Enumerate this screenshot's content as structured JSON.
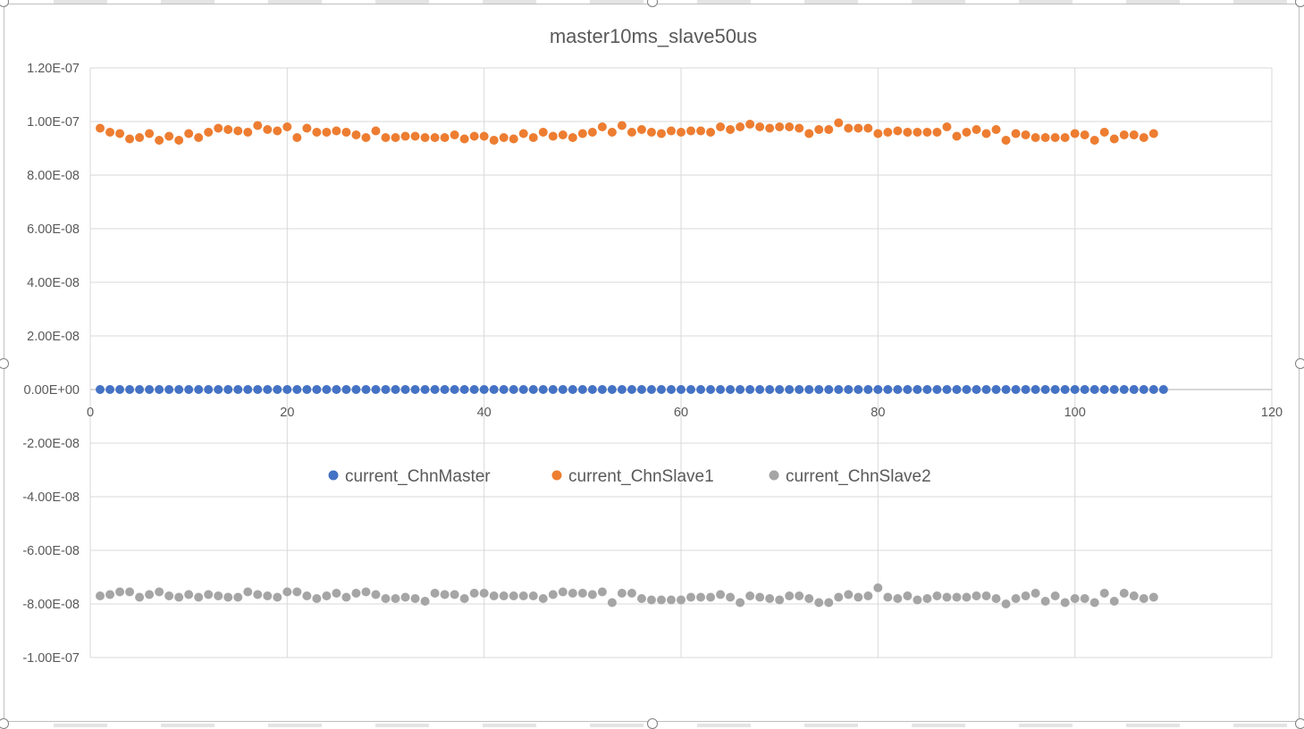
{
  "chart_data": {
    "type": "scatter",
    "title": "master10ms_slave50us",
    "xlabel": "",
    "ylabel": "",
    "xlim": [
      0,
      120
    ],
    "ylim": [
      -1e-07,
      1.2e-07
    ],
    "x_ticks": [
      0,
      20,
      40,
      60,
      80,
      100,
      120
    ],
    "y_ticks": [
      {
        "value": 1.2e-07,
        "label": "1.20E-07"
      },
      {
        "value": 1e-07,
        "label": "1.00E-07"
      },
      {
        "value": 8e-08,
        "label": "8.00E-08"
      },
      {
        "value": 6e-08,
        "label": "6.00E-08"
      },
      {
        "value": 4e-08,
        "label": "4.00E-08"
      },
      {
        "value": 2e-08,
        "label": "2.00E-08"
      },
      {
        "value": 0,
        "label": "0.00E+00"
      },
      {
        "value": -2e-08,
        "label": "-2.00E-08"
      },
      {
        "value": -4e-08,
        "label": "-4.00E-08"
      },
      {
        "value": -6e-08,
        "label": "-6.00E-08"
      },
      {
        "value": -8e-08,
        "label": "-8.00E-08"
      },
      {
        "value": -1e-07,
        "label": "-1.00E-07"
      }
    ],
    "grid": true,
    "legend_position": "center",
    "series": [
      {
        "name": "current_ChnMaster",
        "color": "#4472c4",
        "x_start": 1,
        "values": [
          0,
          0,
          0,
          0,
          0,
          0,
          0,
          0,
          0,
          0,
          0,
          0,
          0,
          0,
          0,
          0,
          0,
          0,
          0,
          0,
          0,
          0,
          0,
          0,
          0,
          0,
          0,
          0,
          0,
          0,
          0,
          0,
          0,
          0,
          0,
          0,
          0,
          0,
          0,
          0,
          0,
          0,
          0,
          0,
          0,
          0,
          0,
          0,
          0,
          0,
          0,
          0,
          0,
          0,
          0,
          0,
          0,
          0,
          0,
          0,
          0,
          0,
          0,
          0,
          0,
          0,
          0,
          0,
          0,
          0,
          0,
          0,
          0,
          0,
          0,
          0,
          0,
          0,
          0,
          0,
          0,
          0,
          0,
          0,
          0,
          0,
          0,
          0,
          0,
          0,
          0,
          0,
          0,
          0,
          0,
          0,
          0,
          0,
          0,
          0,
          0,
          0,
          0,
          0,
          0,
          0,
          0,
          0,
          0
        ]
      },
      {
        "name": "current_ChnSlave1",
        "color": "#ed7d31",
        "x_start": 1,
        "values": [
          9.75e-08,
          9.6e-08,
          9.55e-08,
          9.35e-08,
          9.4e-08,
          9.55e-08,
          9.3e-08,
          9.45e-08,
          9.3e-08,
          9.55e-08,
          9.4e-08,
          9.6e-08,
          9.75e-08,
          9.7e-08,
          9.65e-08,
          9.6e-08,
          9.85e-08,
          9.7e-08,
          9.65e-08,
          9.8e-08,
          9.4e-08,
          9.75e-08,
          9.6e-08,
          9.6e-08,
          9.65e-08,
          9.6e-08,
          9.5e-08,
          9.4e-08,
          9.65e-08,
          9.4e-08,
          9.4e-08,
          9.45e-08,
          9.45e-08,
          9.4e-08,
          9.4e-08,
          9.4e-08,
          9.5e-08,
          9.35e-08,
          9.45e-08,
          9.45e-08,
          9.3e-08,
          9.4e-08,
          9.35e-08,
          9.55e-08,
          9.4e-08,
          9.6e-08,
          9.45e-08,
          9.5e-08,
          9.4e-08,
          9.55e-08,
          9.6e-08,
          9.8e-08,
          9.6e-08,
          9.85e-08,
          9.6e-08,
          9.7e-08,
          9.6e-08,
          9.55e-08,
          9.65e-08,
          9.6e-08,
          9.65e-08,
          9.65e-08,
          9.6e-08,
          9.8e-08,
          9.7e-08,
          9.8e-08,
          9.9e-08,
          9.8e-08,
          9.75e-08,
          9.8e-08,
          9.8e-08,
          9.75e-08,
          9.55e-08,
          9.7e-08,
          9.7e-08,
          9.95e-08,
          9.75e-08,
          9.75e-08,
          9.75e-08,
          9.55e-08,
          9.6e-08,
          9.65e-08,
          9.6e-08,
          9.6e-08,
          9.6e-08,
          9.6e-08,
          9.8e-08,
          9.45e-08,
          9.6e-08,
          9.7e-08,
          9.55e-08,
          9.7e-08,
          9.3e-08,
          9.55e-08,
          9.5e-08,
          9.4e-08,
          9.4e-08,
          9.4e-08,
          9.4e-08,
          9.55e-08,
          9.5e-08,
          9.3e-08,
          9.6e-08,
          9.35e-08,
          9.5e-08,
          9.5e-08,
          9.4e-08,
          9.55e-08
        ]
      },
      {
        "name": "current_ChnSlave2",
        "color": "#a5a5a5",
        "x_start": 1,
        "values": [
          -7.7e-08,
          -7.65e-08,
          -7.55e-08,
          -7.55e-08,
          -7.75e-08,
          -7.65e-08,
          -7.55e-08,
          -7.7e-08,
          -7.75e-08,
          -7.65e-08,
          -7.75e-08,
          -7.65e-08,
          -7.7e-08,
          -7.75e-08,
          -7.75e-08,
          -7.55e-08,
          -7.65e-08,
          -7.7e-08,
          -7.75e-08,
          -7.55e-08,
          -7.55e-08,
          -7.7e-08,
          -7.8e-08,
          -7.7e-08,
          -7.6e-08,
          -7.75e-08,
          -7.6e-08,
          -7.55e-08,
          -7.65e-08,
          -7.8e-08,
          -7.8e-08,
          -7.75e-08,
          -7.8e-08,
          -7.9e-08,
          -7.6e-08,
          -7.65e-08,
          -7.65e-08,
          -7.8e-08,
          -7.6e-08,
          -7.6e-08,
          -7.7e-08,
          -7.7e-08,
          -7.7e-08,
          -7.7e-08,
          -7.7e-08,
          -7.8e-08,
          -7.65e-08,
          -7.55e-08,
          -7.6e-08,
          -7.6e-08,
          -7.65e-08,
          -7.55e-08,
          -7.95e-08,
          -7.6e-08,
          -7.6e-08,
          -7.8e-08,
          -7.85e-08,
          -7.85e-08,
          -7.85e-08,
          -7.85e-08,
          -7.75e-08,
          -7.75e-08,
          -7.75e-08,
          -7.65e-08,
          -7.75e-08,
          -7.95e-08,
          -7.7e-08,
          -7.75e-08,
          -7.8e-08,
          -7.85e-08,
          -7.7e-08,
          -7.7e-08,
          -7.8e-08,
          -7.95e-08,
          -7.95e-08,
          -7.75e-08,
          -7.65e-08,
          -7.75e-08,
          -7.7e-08,
          -7.4e-08,
          -7.75e-08,
          -7.8e-08,
          -7.7e-08,
          -7.85e-08,
          -7.8e-08,
          -7.7e-08,
          -7.75e-08,
          -7.75e-08,
          -7.75e-08,
          -7.7e-08,
          -7.7e-08,
          -7.8e-08,
          -8e-08,
          -7.8e-08,
          -7.7e-08,
          -7.6e-08,
          -7.9e-08,
          -7.7e-08,
          -7.95e-08,
          -7.8e-08,
          -7.8e-08,
          -7.95e-08,
          -7.6e-08,
          -7.9e-08,
          -7.6e-08,
          -7.7e-08,
          -7.8e-08,
          -7.75e-08
        ]
      }
    ]
  }
}
